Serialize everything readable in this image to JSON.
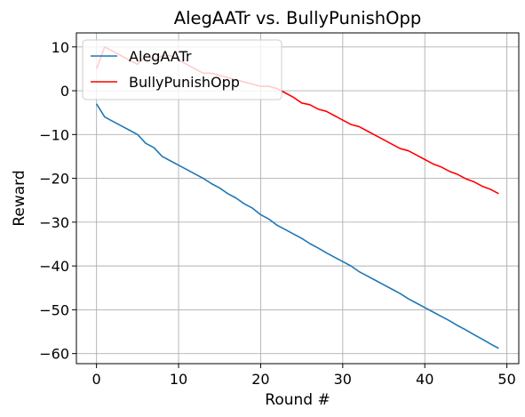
{
  "chart_data": {
    "type": "line",
    "title": "AlegAATr vs. BullyPunishOpp",
    "xlabel": "Round #",
    "ylabel": "Reward",
    "xlim": [
      -2.45,
      51.45
    ],
    "ylim": [
      -62.3,
      13.2
    ],
    "xticks": [
      0,
      10,
      20,
      30,
      40,
      50
    ],
    "yticks": [
      -60,
      -50,
      -40,
      -30,
      -20,
      -10,
      0,
      10
    ],
    "grid": true,
    "legend": "upper left",
    "x": [
      0,
      1,
      2,
      3,
      4,
      5,
      6,
      7,
      8,
      9,
      10,
      11,
      12,
      13,
      14,
      15,
      16,
      17,
      18,
      19,
      20,
      21,
      22,
      23,
      24,
      25,
      26,
      27,
      28,
      29,
      30,
      31,
      32,
      33,
      34,
      35,
      36,
      37,
      38,
      39,
      40,
      41,
      42,
      43,
      44,
      45,
      46,
      47,
      48,
      49
    ],
    "series": [
      {
        "name": "AlegAATr",
        "color": "#1f77b4",
        "values": [
          -3,
          -6,
          -7,
          -8,
          -9,
          -10,
          -12,
          -13,
          -15,
          -16,
          -17,
          -18,
          -19,
          -20,
          -21.2,
          -22.2,
          -23.5,
          -24.5,
          -25.8,
          -26.8,
          -28.3,
          -29.3,
          -30.7,
          -31.7,
          -32.7,
          -33.7,
          -34.9,
          -35.9,
          -37,
          -38,
          -39,
          -40,
          -41.3,
          -42.3,
          -43.3,
          -44.3,
          -45.3,
          -46.3,
          -47.5,
          -48.5,
          -49.5,
          -50.5,
          -51.5,
          -52.5,
          -53.6,
          -54.6,
          -55.7,
          -56.7,
          -57.8,
          -58.8
        ]
      },
      {
        "name": "BullyPunishOpp",
        "color": "#ff0000",
        "values": [
          5,
          10,
          9,
          8,
          7,
          6,
          8,
          7,
          8,
          8,
          7,
          6,
          5,
          4,
          4,
          3.5,
          3,
          2.5,
          2,
          1.5,
          1,
          1,
          0.5,
          -0.5,
          -1.5,
          -2.8,
          -3.2,
          -4.2,
          -4.7,
          -5.7,
          -6.7,
          -7.7,
          -8.2,
          -9.2,
          -10.2,
          -11.2,
          -12.2,
          -13.2,
          -13.7,
          -14.7,
          -15.7,
          -16.7,
          -17.4,
          -18.4,
          -19.1,
          -20.1,
          -20.8,
          -21.8,
          -22.5,
          -23.5
        ]
      }
    ]
  }
}
